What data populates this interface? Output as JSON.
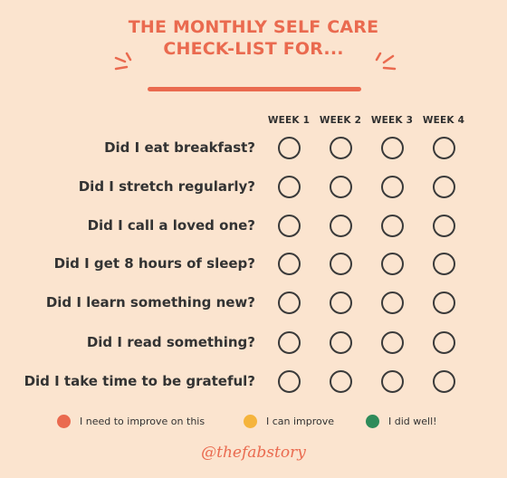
{
  "title": {
    "line1": "THE MONTHLY SELF CARE",
    "line2": "CHECK-LIST FOR..."
  },
  "weeks": [
    "WEEK 1",
    "WEEK 2",
    "WEEK 3",
    "WEEK 4"
  ],
  "questions": [
    "Did I eat breakfast?",
    "Did I stretch regularly?",
    "Did I call a loved one?",
    "Did I get 8 hours of sleep?",
    "Did I learn something new?",
    "Did I read something?",
    "Did I take time to be grateful?"
  ],
  "legend": [
    {
      "label": "I need to improve on this",
      "color": "#ea6a4f"
    },
    {
      "label": "I can improve",
      "color": "#f5b43c"
    },
    {
      "label": "I did well!",
      "color": "#2e8b5a"
    }
  ],
  "handle": "@thefabstory",
  "colors": {
    "background": "#fbe4cf",
    "accent": "#ea6a4f",
    "text": "#333333"
  }
}
